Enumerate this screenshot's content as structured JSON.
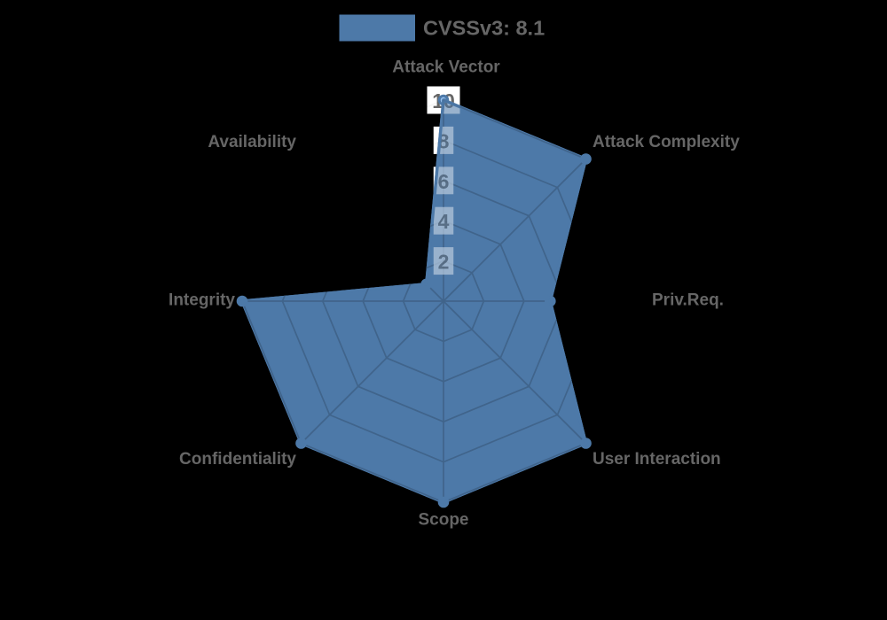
{
  "legend": {
    "label": "CVSSv3: 8.1"
  },
  "chart_data": {
    "type": "radar",
    "categories": [
      "Attack Vector",
      "Attack Complexity",
      "Priv.Req.",
      "User Interaction",
      "Scope",
      "Confidentiality",
      "Integrity",
      "Availability"
    ],
    "series": [
      {
        "name": "CVSSv3: 8.1",
        "values": [
          10,
          10,
          5.3,
          10,
          10,
          10,
          10,
          1.2
        ]
      }
    ],
    "ticks": [
      "2",
      "4",
      "6",
      "8",
      "10"
    ],
    "tick_values": [
      2,
      4,
      6,
      8,
      10
    ],
    "rlim": [
      0,
      10
    ],
    "grid": true,
    "legend_position": "top-center",
    "colors": {
      "series": "#4d79a8",
      "series_fill_translucent": "rgba(110,172,239,0.70)",
      "grid_on_fill": "#40648b",
      "grid_on_box": "rgba(0,0,0,0.035)",
      "tick_box": "#ffffff",
      "tick_box_on_fill": "#99b2cd",
      "tick_text": "#666666",
      "tick_text_on_fill": "#596f87",
      "label_text": "#666666",
      "background": "#000000"
    }
  }
}
